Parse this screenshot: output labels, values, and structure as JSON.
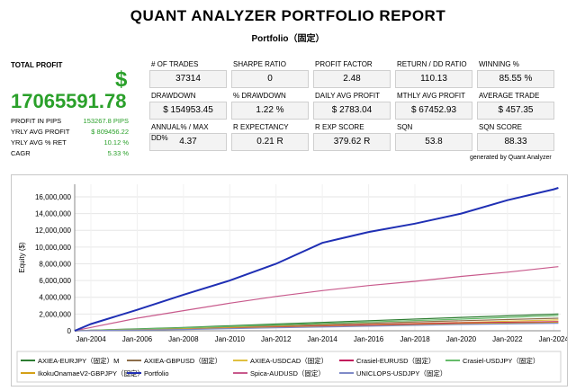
{
  "report": {
    "title": "QUANT ANALYZER PORTFOLIO REPORT",
    "subtitle": "Portfolio（固定）"
  },
  "total_profit": {
    "label": "TOTAL PROFIT",
    "currency": "$",
    "value": "17065591.78",
    "items": [
      {
        "label": "PROFIT IN PIPS",
        "value": "153267.8 PIPS"
      },
      {
        "label": "YRLY AVG PROFIT",
        "value": "$ 809456.22"
      },
      {
        "label": "YRLY AVG % RET",
        "value": "10.12 %"
      },
      {
        "label": "CAGR",
        "value": "5.33 %"
      }
    ]
  },
  "stats": [
    {
      "label": "# OF TRADES",
      "value": "37314"
    },
    {
      "label": "SHARPE RATIO",
      "value": "0"
    },
    {
      "label": "PROFIT FACTOR",
      "value": "2.48"
    },
    {
      "label": "RETURN / DD RATIO",
      "value": "110.13"
    },
    {
      "label": "WINNING %",
      "value": "85.55 %"
    },
    {
      "label": "DRAWDOWN",
      "value": "$ 154953.45"
    },
    {
      "label": "% DRAWDOWN",
      "value": "1.22 %"
    },
    {
      "label": "DAILY AVG PROFIT",
      "value": "$ 2783.04"
    },
    {
      "label": "MTHLY AVG PROFIT",
      "value": "$ 67452.93"
    },
    {
      "label": "AVERAGE TRADE",
      "value": "$ 457.35"
    },
    {
      "label": "ANNUAL% / MAX DD%",
      "value": "4.37"
    },
    {
      "label": "R EXPECTANCY",
      "value": "0.21 R"
    },
    {
      "label": "R EXP SCORE",
      "value": "379.62 R"
    },
    {
      "label": "SQN",
      "value": "53.8"
    },
    {
      "label": "SQN SCORE",
      "value": "88.33"
    }
  ],
  "generated_by": "generated by Quant Analyzer",
  "chart_data": {
    "type": "line",
    "ylabel": "Equity ($)",
    "xlabel": "",
    "ylim": [
      0,
      17500000
    ],
    "xlim": [
      2003.3,
      2024.3
    ],
    "y_ticks": [
      0,
      2000000,
      4000000,
      6000000,
      8000000,
      10000000,
      12000000,
      14000000,
      16000000
    ],
    "y_tick_labels": [
      "0",
      "2,000,000",
      "4,000,000",
      "6,000,000",
      "8,000,000",
      "10,000,000",
      "12,000,000",
      "14,000,000",
      "16,000,000"
    ],
    "x_ticks": [
      2004,
      2006,
      2008,
      2010,
      2012,
      2014,
      2016,
      2018,
      2020,
      2022,
      2024
    ],
    "x_tick_labels": [
      "Jan-2004",
      "Jan-2006",
      "Jan-2008",
      "Jan-2010",
      "Jan-2012",
      "Jan-2014",
      "Jan-2016",
      "Jan-2018",
      "Jan-2020",
      "Jan-2022",
      "Jan-2024"
    ],
    "grid": true,
    "legend_position": "bottom",
    "series": [
      {
        "name": "AXIEA-EURJPY（固定）M",
        "color": "#2e7d32",
        "x": [
          2003.3,
          2008,
          2012,
          2016,
          2020,
          2024.2
        ],
        "values": [
          0,
          400000,
          800000,
          1200000,
          1600000,
          2000000
        ]
      },
      {
        "name": "AXIEA-GBPUSD（固定）",
        "color": "#8d6e4a",
        "x": [
          2003.3,
          2008,
          2012,
          2016,
          2020,
          2024.2
        ],
        "values": [
          0,
          300000,
          600000,
          900000,
          1200000,
          1500000
        ]
      },
      {
        "name": "AXIEA-USDCAD（固定）",
        "color": "#e0c040",
        "x": [
          2003.3,
          2008,
          2012,
          2016,
          2020,
          2024.2
        ],
        "values": [
          0,
          250000,
          500000,
          750000,
          1000000,
          1300000
        ]
      },
      {
        "name": "Crasiel-EURUSD（固定）",
        "color": "#c2185b",
        "x": [
          2003.3,
          2008,
          2012,
          2016,
          2020,
          2024.2
        ],
        "values": [
          0,
          200000,
          450000,
          700000,
          950000,
          1100000
        ]
      },
      {
        "name": "Crasiel-USDJPY（固定）",
        "color": "#66bb6a",
        "x": [
          2003.3,
          2008,
          2012,
          2016,
          2020,
          2024.2
        ],
        "values": [
          0,
          350000,
          700000,
          1050000,
          1400000,
          1800000
        ]
      },
      {
        "name": "IkokuOnamaeV2-GBPJPY（固定）",
        "color": "#d4a017",
        "x": [
          2003.3,
          2008,
          2012,
          2016,
          2020,
          2024.2
        ],
        "values": [
          0,
          200000,
          400000,
          600000,
          850000,
          1000000
        ]
      },
      {
        "name": "Portfolio",
        "color": "#1f2fb4",
        "x": [
          2003.3,
          2004,
          2006,
          2008,
          2010,
          2012,
          2014,
          2016,
          2018,
          2020,
          2022,
          2024,
          2024.2
        ],
        "values": [
          0,
          800000,
          2500000,
          4300000,
          6000000,
          8000000,
          10500000,
          11800000,
          12800000,
          14000000,
          15600000,
          16900000,
          17065591
        ]
      },
      {
        "name": "Spica-AUDUSD（固定）",
        "color": "#c85a8c",
        "x": [
          2003.3,
          2004,
          2006,
          2008,
          2010,
          2012,
          2014,
          2016,
          2018,
          2020,
          2022,
          2024,
          2024.2
        ],
        "values": [
          0,
          400000,
          1500000,
          2400000,
          3300000,
          4100000,
          4800000,
          5400000,
          5900000,
          6500000,
          7000000,
          7600000,
          7650000
        ]
      },
      {
        "name": "UNICLOPS-USDJPY（固定）",
        "color": "#7f8ac8",
        "x": [
          2003.3,
          2008,
          2012,
          2016,
          2020,
          2024.2
        ],
        "values": [
          0,
          150000,
          350000,
          550000,
          750000,
          900000
        ]
      }
    ]
  }
}
